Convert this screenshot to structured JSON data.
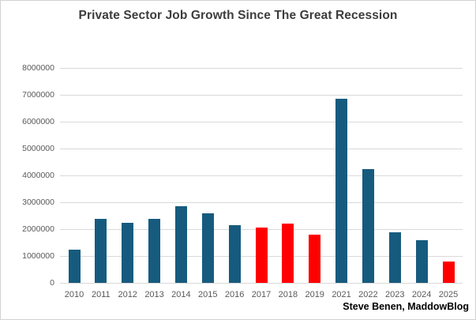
{
  "chart_data": {
    "type": "bar",
    "title": "Private Sector Job Growth Since The Great Recession",
    "xlabel": "",
    "ylabel": "",
    "categories": [
      "2010",
      "2011",
      "2012",
      "2013",
      "2014",
      "2015",
      "2016",
      "2017",
      "2018",
      "2019",
      "2021",
      "2022",
      "2023",
      "2024",
      "2025"
    ],
    "values": [
      1250000,
      2380000,
      2250000,
      2380000,
      2860000,
      2590000,
      2140000,
      2060000,
      2200000,
      1800000,
      6850000,
      4250000,
      1880000,
      1580000,
      790000
    ],
    "bar_colors": [
      "#165b7e",
      "#165b7e",
      "#165b7e",
      "#165b7e",
      "#165b7e",
      "#165b7e",
      "#165b7e",
      "#ff0000",
      "#ff0000",
      "#ff0000",
      "#165b7e",
      "#165b7e",
      "#165b7e",
      "#165b7e",
      "#ff0000"
    ],
    "ylim": [
      0,
      8000000
    ],
    "yticks": [
      "0",
      "1000000",
      "2000000",
      "3000000",
      "4000000",
      "5000000",
      "6000000",
      "7000000",
      "8000000"
    ],
    "grid": true,
    "legend": "none",
    "note": "2020 omitted from x-axis"
  },
  "colors": {
    "bar_blue": "#165b7e",
    "bar_red": "#ff0000",
    "gridline": "#d9d9d9",
    "axis_label": "#595959",
    "title_text": "#3d3d3d",
    "frame_border": "#d2d2d2"
  },
  "attribution": "Steve Benen, MaddowBlog"
}
